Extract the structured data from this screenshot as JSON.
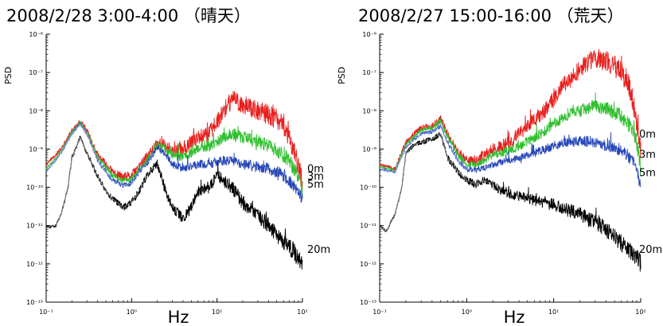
{
  "chart_data": [
    {
      "type": "line",
      "title": "2008/2/28 3:00-4:00 （晴天）",
      "xlabel": "Hz",
      "ylabel": "PSD",
      "xscale": "log",
      "yscale": "log",
      "xlim": [
        0.1,
        100
      ],
      "ylim": [
        1e-13,
        1e-06
      ],
      "xticklabels": [
        "10⁻¹",
        "10⁰",
        "10¹",
        "10²"
      ],
      "yticklabels": [
        "10⁻⁶",
        "10⁻⁷",
        "10⁻⁸",
        "10⁻⁹",
        "10⁻¹⁰",
        "10⁻¹¹",
        "10⁻¹²",
        "10⁻¹³"
      ],
      "grid": false,
      "colors": {
        "0m": "#e8201e",
        "3m": "#2fbf2f",
        "5m": "#2747b8",
        "20m": "#000000",
        "mid-5m": "#8fa0d8",
        "mid-20m": "#777777"
      },
      "series": [
        {
          "name": "0m",
          "x": [
            0.1,
            0.15,
            0.2,
            0.25,
            0.3,
            0.4,
            0.6,
            0.8,
            1.0,
            1.3,
            1.6,
            2.0,
            2.5,
            3.0,
            4.0,
            5.0,
            6.0,
            8.0,
            10,
            12,
            15,
            20,
            30,
            40,
            50,
            60,
            70,
            80,
            90,
            100
          ],
          "y": [
            4e-10,
            1e-09,
            3e-09,
            5e-09,
            3e-09,
            7e-10,
            2.5e-10,
            1.8e-10,
            2e-10,
            4e-10,
            7e-10,
            1.5e-09,
            1.2e-09,
            9e-10,
            1e-09,
            1.5e-09,
            2e-09,
            2.5e-09,
            5e-09,
            1e-08,
            2e-08,
            1.5e-08,
            1e-08,
            8e-09,
            6e-09,
            4e-09,
            2e-09,
            1e-09,
            4e-10,
            1e-10
          ]
        },
        {
          "name": "3m",
          "x": [
            0.1,
            0.15,
            0.2,
            0.25,
            0.3,
            0.4,
            0.6,
            0.8,
            1.0,
            1.3,
            1.6,
            2.0,
            2.5,
            3.0,
            4.0,
            5.0,
            6.0,
            8.0,
            10,
            12,
            15,
            20,
            30,
            40,
            50,
            60,
            70,
            80,
            90,
            100
          ],
          "y": [
            3e-10,
            9e-10,
            2.8e-09,
            5e-09,
            2.8e-09,
            6e-10,
            2e-10,
            1.5e-10,
            1.7e-10,
            3.5e-10,
            6e-10,
            1.3e-09,
            1e-09,
            7e-10,
            6e-10,
            8e-10,
            1e-09,
            1.2e-09,
            1.5e-09,
            2e-09,
            2.5e-09,
            2e-09,
            1.6e-09,
            1.2e-09,
            9e-10,
            7e-10,
            5e-10,
            3e-10,
            2e-10,
            8e-11
          ]
        },
        {
          "name": "5m",
          "x": [
            0.1,
            0.15,
            0.2,
            0.25,
            0.3,
            0.4,
            0.6,
            0.8,
            1.0,
            1.3,
            1.6,
            2.0,
            2.5,
            3.0,
            4.0,
            5.0,
            6.0,
            8.0,
            10,
            12,
            15,
            20,
            30,
            40,
            50,
            60,
            70,
            80,
            90,
            100
          ],
          "y": [
            2.5e-10,
            8e-10,
            2.5e-09,
            4.5e-09,
            2.5e-09,
            5e-10,
            1.5e-10,
            1.1e-10,
            1.3e-10,
            3e-10,
            5e-10,
            1.1e-09,
            7e-10,
            4e-10,
            3e-10,
            3.5e-10,
            4e-10,
            4e-10,
            4.5e-10,
            5e-10,
            5e-10,
            4e-10,
            3.5e-10,
            3e-10,
            2.5e-10,
            2e-10,
            1.5e-10,
            1e-10,
            7e-11,
            5e-11
          ]
        },
        {
          "name": "20m",
          "x": [
            0.1,
            0.13,
            0.15,
            0.18,
            0.2,
            0.25,
            0.3,
            0.4,
            0.5,
            0.6,
            0.8,
            1.0,
            1.3,
            1.6,
            2.0,
            2.5,
            3.0,
            4.0,
            5.0,
            6.0,
            8.0,
            10,
            12,
            15,
            20,
            30,
            40,
            50,
            60,
            70,
            80,
            90,
            100
          ],
          "y": [
            9e-12,
            1e-11,
            2e-11,
            1e-10,
            6e-10,
            2e-09,
            8e-10,
            2e-10,
            8e-11,
            5e-11,
            3e-11,
            4e-11,
            1e-10,
            2.5e-10,
            4e-10,
            8e-11,
            3e-11,
            1.5e-11,
            3e-11,
            8e-11,
            1e-10,
            2e-10,
            1.5e-10,
            1e-10,
            4e-11,
            2e-11,
            1e-11,
            6e-12,
            4e-12,
            3e-12,
            2e-12,
            1.5e-12,
            1e-12
          ]
        }
      ]
    },
    {
      "type": "line",
      "title": "2008/2/27 15:00-16:00 （荒天）",
      "xlabel": "Hz",
      "ylabel": "PSD",
      "xscale": "log",
      "yscale": "log",
      "xlim": [
        0.1,
        100
      ],
      "ylim": [
        1e-13,
        1e-06
      ],
      "xticklabels": [
        "10⁻¹",
        "10⁰",
        "10¹",
        "10²"
      ],
      "yticklabels": [
        "10⁻⁶",
        "10⁻⁷",
        "10⁻⁸",
        "10⁻⁹",
        "10⁻¹⁰",
        "10⁻¹¹",
        "10⁻¹²",
        "10⁻¹³"
      ],
      "grid": false,
      "colors": {
        "0m": "#e8201e",
        "3m": "#2fbf2f",
        "5m": "#2747b8",
        "20m": "#000000",
        "mid-5m": "#8fa0d8",
        "mid-20m": "#777777"
      },
      "series": [
        {
          "name": "0m",
          "x": [
            0.1,
            0.15,
            0.2,
            0.25,
            0.3,
            0.4,
            0.5,
            0.6,
            0.8,
            1.0,
            1.3,
            1.6,
            2.0,
            2.5,
            3.0,
            4.0,
            5.0,
            6.0,
            8.0,
            10,
            12,
            15,
            20,
            25,
            30,
            40,
            50,
            60,
            70,
            80,
            90,
            100
          ],
          "y": [
            4e-10,
            3e-10,
            1.5e-09,
            2.5e-09,
            3.5e-09,
            4e-09,
            6e-09,
            2.5e-09,
            8e-10,
            5e-10,
            5e-10,
            7e-10,
            1e-09,
            1.2e-09,
            1.5e-09,
            2.5e-09,
            4e-09,
            6e-09,
            1e-08,
            2e-08,
            4e-08,
            6e-08,
            1.2e-07,
            2e-07,
            2.5e-07,
            2e-07,
            1.5e-07,
            1e-07,
            6e-08,
            2e-08,
            5e-09,
            8e-10
          ]
        },
        {
          "name": "3m",
          "x": [
            0.1,
            0.15,
            0.2,
            0.25,
            0.3,
            0.4,
            0.5,
            0.6,
            0.8,
            1.0,
            1.3,
            1.6,
            2.0,
            2.5,
            3.0,
            4.0,
            5.0,
            6.0,
            8.0,
            10,
            12,
            15,
            20,
            25,
            30,
            40,
            50,
            60,
            70,
            80,
            90,
            100
          ],
          "y": [
            3.5e-10,
            2.8e-10,
            1.3e-09,
            2.2e-09,
            3.2e-09,
            3.5e-09,
            5.5e-09,
            2.2e-09,
            7e-10,
            4e-10,
            4e-10,
            5e-10,
            7e-10,
            8e-10,
            9e-10,
            1.2e-09,
            1.6e-09,
            2e-09,
            3e-09,
            4.5e-09,
            6e-09,
            8e-09,
            1e-08,
            1.2e-08,
            1.3e-08,
            1.1e-08,
            9e-09,
            7e-09,
            5e-09,
            3e-09,
            1.5e-09,
            3e-10
          ]
        },
        {
          "name": "5m",
          "x": [
            0.1,
            0.15,
            0.2,
            0.25,
            0.3,
            0.4,
            0.5,
            0.6,
            0.8,
            1.0,
            1.3,
            1.6,
            2.0,
            2.5,
            3.0,
            4.0,
            5.0,
            6.0,
            8.0,
            10,
            12,
            15,
            20,
            25,
            30,
            40,
            50,
            60,
            70,
            80,
            90,
            100
          ],
          "y": [
            3e-10,
            2.5e-10,
            1.1e-09,
            1.8e-09,
            2.5e-09,
            2.8e-09,
            4e-09,
            1.5e-09,
            5e-10,
            3e-10,
            2.8e-10,
            3.2e-10,
            4e-10,
            4.5e-10,
            5e-10,
            6e-10,
            7e-10,
            8e-10,
            1e-09,
            1.2e-09,
            1.4e-09,
            1.5e-09,
            1.6e-09,
            1.6e-09,
            1.5e-09,
            1.3e-09,
            1.1e-09,
            9e-10,
            7e-10,
            5e-10,
            3e-10,
            1e-10
          ]
        },
        {
          "name": "20m",
          "x": [
            0.1,
            0.12,
            0.15,
            0.18,
            0.2,
            0.25,
            0.3,
            0.4,
            0.5,
            0.6,
            0.8,
            1.0,
            1.3,
            1.6,
            2.0,
            2.5,
            3.0,
            4.0,
            5.0,
            6.0,
            8.0,
            10,
            12,
            15,
            20,
            30,
            40,
            50,
            60,
            70,
            80,
            90,
            100
          ],
          "y": [
            1e-11,
            7e-12,
            2e-11,
            1e-10,
            8e-10,
            1.3e-09,
            1.5e-09,
            1.8e-09,
            2.5e-09,
            6e-10,
            2.5e-10,
            1.5e-10,
            1.2e-10,
            1.5e-10,
            1.2e-10,
            8e-11,
            7e-11,
            6e-11,
            5e-11,
            4.5e-11,
            4e-11,
            3.5e-11,
            3e-11,
            2.5e-11,
            2e-11,
            1.2e-11,
            8e-12,
            5e-12,
            3.5e-12,
            2.5e-12,
            2e-12,
            1.5e-12,
            1e-12
          ]
        }
      ]
    }
  ]
}
